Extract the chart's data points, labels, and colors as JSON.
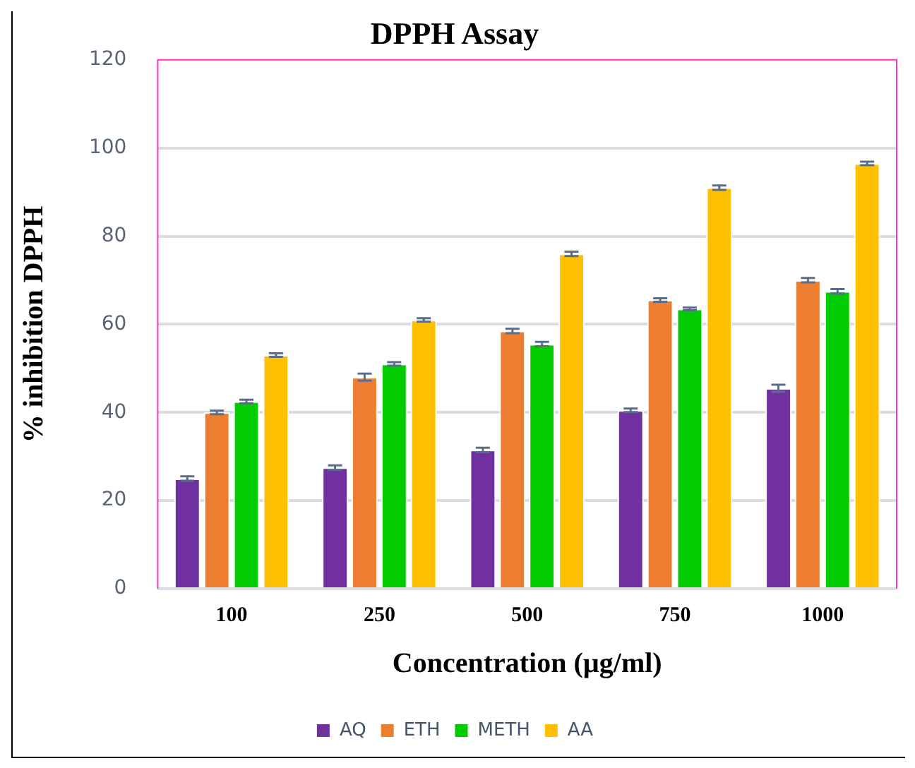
{
  "chart_data": {
    "type": "bar",
    "title": "DPPH Assay",
    "xlabel": "Concentration (µg/ml)",
    "ylabel": "% inhibition DPPH",
    "categories": [
      "100",
      "250",
      "500",
      "750",
      "1000"
    ],
    "series": [
      {
        "name": "AQ",
        "color": "#7030a0",
        "values": [
          25,
          27.5,
          31.5,
          40.5,
          45.5
        ],
        "errors": [
          0.5,
          0.5,
          0.5,
          0.4,
          0.8
        ]
      },
      {
        "name": "ETH",
        "color": "#ed7d31",
        "values": [
          40,
          48,
          58.5,
          65.5,
          70
        ],
        "errors": [
          0.4,
          0.8,
          0.5,
          0.4,
          0.5
        ]
      },
      {
        "name": "METH",
        "color": "#00cc00",
        "values": [
          42.5,
          51,
          55.5,
          63.5,
          67.5
        ],
        "errors": [
          0.4,
          0.4,
          0.5,
          0.3,
          0.5
        ]
      },
      {
        "name": "AA",
        "color": "#ffc000",
        "values": [
          53,
          61,
          76,
          91,
          96.5
        ],
        "errors": [
          0.4,
          0.4,
          0.5,
          0.5,
          0.4
        ]
      }
    ],
    "ylim": [
      0,
      120
    ],
    "yticks": [
      0,
      20,
      40,
      60,
      80,
      100,
      120
    ],
    "grid": "y",
    "legend": "bottom"
  }
}
